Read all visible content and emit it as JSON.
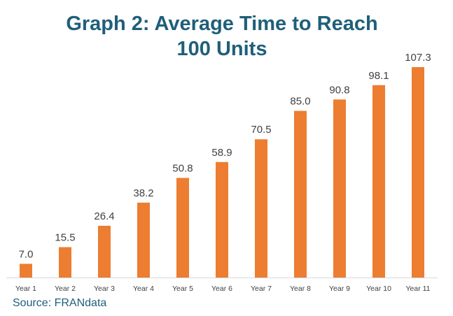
{
  "chart_data": {
    "type": "bar",
    "title_lines": [
      "Graph 2: Average Time to Reach",
      "100 Units"
    ],
    "categories": [
      "Year 1",
      "Year 2",
      "Year 3",
      "Year 4",
      "Year 5",
      "Year 6",
      "Year 7",
      "Year 8",
      "Year 9",
      "Year 10",
      "Year 11"
    ],
    "values": [
      7.0,
      15.5,
      26.4,
      38.2,
      50.8,
      58.9,
      70.5,
      85.0,
      90.8,
      98.1,
      107.3
    ],
    "value_labels": [
      "7.0",
      "15.5",
      "26.4",
      "38.2",
      "50.8",
      "58.9",
      "70.5",
      "85.0",
      "90.8",
      "98.1",
      "107.3"
    ],
    "xlabel": "",
    "ylabel": "",
    "ylim": [
      0,
      107.3
    ],
    "grid": false,
    "legend": "none",
    "bar_color": "#ed7d31"
  },
  "source": "Source: FRANdata",
  "colors": {
    "title": "#1f5f7a",
    "source": "#1f5f7a",
    "value_label": "#404040",
    "tick_label": "#404040",
    "axis": "#d9d9d9"
  }
}
